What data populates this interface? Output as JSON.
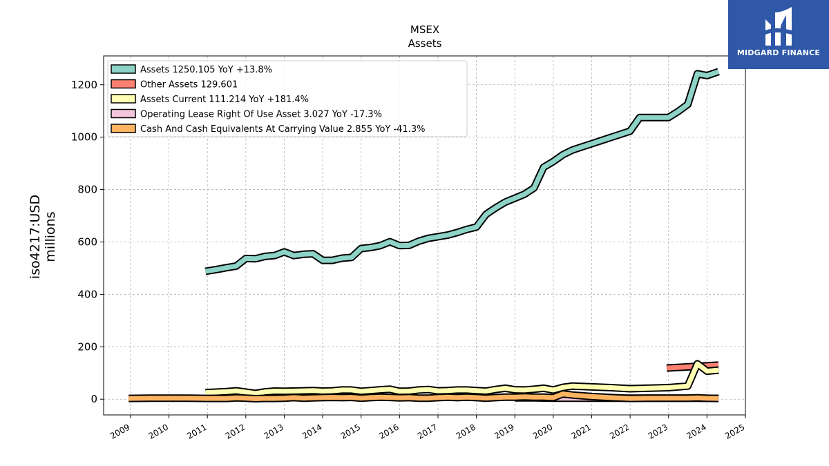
{
  "chart_data": {
    "type": "line",
    "title": "MSEX",
    "subtitle": "Assets",
    "ylabel": "iso4217:USD",
    "ylabel2": "millions",
    "xlabel": "",
    "xlim": [
      2008.3,
      2025.0
    ],
    "ylim": [
      -60,
      1310
    ],
    "grid": true,
    "legend_position": "top-left",
    "x_ticks": [
      2009,
      2010,
      2011,
      2012,
      2013,
      2014,
      2015,
      2016,
      2017,
      2018,
      2019,
      2020,
      2021,
      2022,
      2023,
      2024,
      2025
    ],
    "y_ticks": [
      0,
      200,
      400,
      600,
      800,
      1000,
      1200
    ],
    "series": [
      {
        "name": "Assets  1250.105 YoY +13.8%",
        "color": "#8dd3c7",
        "x": [
          2010.95,
          2011.25,
          2011.5,
          2011.75,
          2012.0,
          2012.25,
          2012.5,
          2012.75,
          2013.0,
          2013.25,
          2013.5,
          2013.75,
          2014.0,
          2014.25,
          2014.5,
          2014.75,
          2015.0,
          2015.25,
          2015.5,
          2015.75,
          2016.0,
          2016.25,
          2016.5,
          2016.75,
          2017.0,
          2017.25,
          2017.5,
          2017.75,
          2018.0,
          2018.25,
          2018.5,
          2018.75,
          2019.0,
          2019.25,
          2019.5,
          2019.75,
          2020.0,
          2020.25,
          2020.5,
          2020.75,
          2021.0,
          2021.25,
          2021.5,
          2021.75,
          2022.0,
          2022.25,
          2022.5,
          2022.75,
          2023.0,
          2023.25,
          2023.5,
          2023.75,
          2024.0,
          2024.3
        ],
        "y": [
          488,
          495,
          502,
          508,
          537,
          536,
          545,
          548,
          562,
          548,
          553,
          555,
          530,
          530,
          538,
          541,
          575,
          579,
          586,
          601,
          586,
          587,
          603,
          614,
          620,
          626,
          636,
          648,
          657,
          705,
          730,
          752,
          767,
          782,
          806,
          885,
          907,
          933,
          951,
          963,
          975,
          987,
          999,
          1011,
          1023,
          1075,
          1075,
          1075,
          1075,
          1098,
          1125,
          1242,
          1235,
          1250
        ]
      },
      {
        "name": "Other Assets  129.601",
        "color": "#fb8072",
        "x": [
          2022.95,
          2024.3
        ],
        "y": [
          119,
          130
        ]
      },
      {
        "name": "Assets Current  111.214 YoY +181.4%",
        "color": "#ffffb3",
        "x": [
          2010.95,
          2011.5,
          2011.75,
          2012.0,
          2012.25,
          2012.5,
          2012.75,
          2013.0,
          2013.5,
          2013.75,
          2014.0,
          2014.25,
          2014.5,
          2014.75,
          2015.0,
          2015.5,
          2015.75,
          2016.0,
          2016.25,
          2016.5,
          2016.75,
          2017.0,
          2017.25,
          2017.5,
          2017.75,
          2018.0,
          2018.25,
          2018.5,
          2018.75,
          2019.0,
          2019.25,
          2019.5,
          2019.75,
          2020.0,
          2020.25,
          2020.5,
          2021.0,
          2021.5,
          2022.0,
          2022.5,
          2023.0,
          2023.5,
          2023.75,
          2024.0,
          2024.3
        ],
        "y": [
          25,
          29,
          32,
          27,
          22,
          28,
          31,
          30,
          32,
          33,
          31,
          32,
          35,
          35,
          30,
          36,
          38,
          30,
          31,
          35,
          37,
          32,
          33,
          35,
          35,
          33,
          31,
          37,
          42,
          36,
          35,
          38,
          42,
          35,
          45,
          50,
          47,
          44,
          40,
          42,
          44,
          50,
          135,
          107,
          111
        ]
      },
      {
        "name": "Operating Lease Right Of Use Asset  3.027 YoY -17.3%",
        "color": "#f4c6dc",
        "x": [
          2019.0,
          2019.5,
          2020.0,
          2020.5,
          2021.0,
          2021.5,
          2022.0,
          2022.5,
          2023.0,
          2023.5,
          2024.0,
          2024.3
        ],
        "y": [
          5,
          5,
          4,
          4,
          4,
          4,
          4,
          4,
          4,
          4,
          3.5,
          3.0
        ]
      },
      {
        "name": "Cash And Cash Equivalents At Carrying Value  2.855 YoY -41.3%",
        "color": "#fdb462",
        "x": [
          2008.95,
          2009.5,
          2010.0,
          2010.5,
          2011.0,
          2011.5,
          2011.75,
          2012.0,
          2012.25,
          2012.5,
          2012.75,
          2013.0,
          2013.25,
          2013.5,
          2013.75,
          2014.0,
          2014.25,
          2014.5,
          2014.75,
          2015.0,
          2015.25,
          2015.5,
          2015.75,
          2016.0,
          2016.25,
          2016.5,
          2016.75,
          2017.0,
          2017.25,
          2017.5,
          2017.75,
          2018.0,
          2018.25,
          2018.5,
          2018.75,
          2019.0,
          2019.25,
          2019.5,
          2019.75,
          2020.0,
          2020.25,
          2020.5,
          2021.0,
          2021.5,
          2022.0,
          2022.5,
          2023.0,
          2023.5,
          2023.75,
          2024.0,
          2024.3
        ],
        "y": [
          3,
          4,
          4,
          4,
          3,
          3,
          5,
          4,
          2,
          3,
          3,
          4,
          6,
          4,
          5,
          6,
          7,
          6,
          7,
          4,
          6,
          8,
          7,
          5,
          6,
          4,
          4,
          6,
          8,
          6,
          8,
          6,
          4,
          6,
          8,
          8,
          9,
          8,
          8,
          6,
          20,
          16,
          10,
          6,
          3,
          4,
          4,
          4,
          5,
          3.5,
          2.9
        ]
      }
    ]
  },
  "logo": {
    "text": "MIDGARD FINANCE"
  }
}
